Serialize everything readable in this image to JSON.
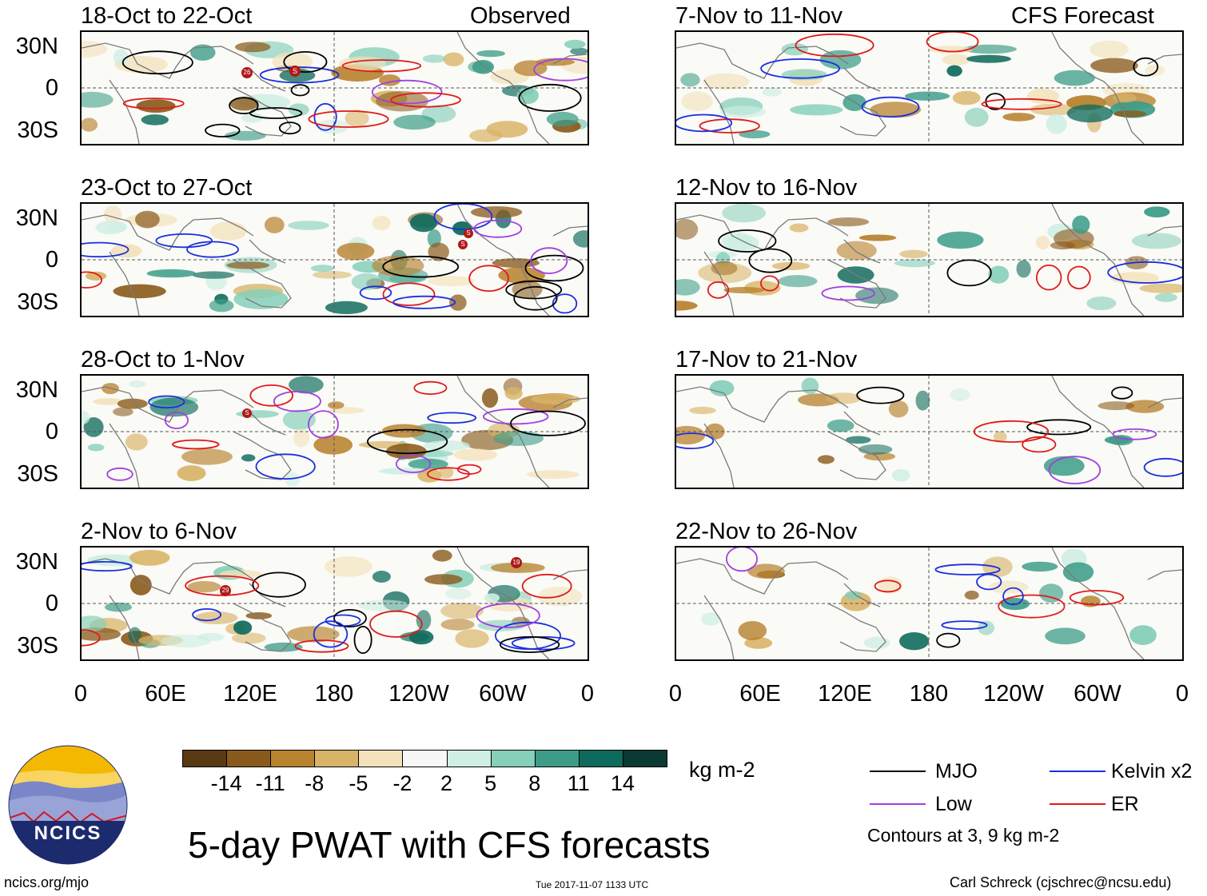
{
  "header": {
    "left_label": "Observed",
    "right_label": "CFS Forecast"
  },
  "panels": [
    {
      "title": "18-Oct to 22-Oct",
      "storms": [
        "26",
        "S"
      ]
    },
    {
      "title": "23-Oct to 27-Oct",
      "storms": [
        "S",
        "S"
      ]
    },
    {
      "title": "28-Oct to 1-Nov",
      "storms": [
        "S"
      ]
    },
    {
      "title": "2-Nov to 6-Nov",
      "storms": [
        "29",
        "19"
      ]
    },
    {
      "title": "7-Nov to 11-Nov",
      "storms": []
    },
    {
      "title": "12-Nov to 16-Nov",
      "storms": []
    },
    {
      "title": "17-Nov to 21-Nov",
      "storms": []
    },
    {
      "title": "22-Nov to 26-Nov",
      "storms": []
    }
  ],
  "y_axis": [
    "30N",
    "0",
    "30S"
  ],
  "x_axis": [
    "0",
    "60E",
    "120E",
    "180",
    "120W",
    "60W",
    "0"
  ],
  "colorbar": {
    "unit": "kg m-2",
    "levels": [
      "-14",
      "-11",
      "-8",
      "-5",
      "-2",
      "2",
      "5",
      "8",
      "11",
      "14"
    ],
    "colors": [
      "#5a3a12",
      "#8a5a1c",
      "#b8822f",
      "#d9b468",
      "#f3e2bb",
      "#f7f7f7",
      "#cfeee4",
      "#86cfba",
      "#3c9c88",
      "#0e6a5c",
      "#0a3a33"
    ]
  },
  "legend": {
    "items": [
      {
        "label": "MJO",
        "color": "#000000"
      },
      {
        "label": "Kelvin x2",
        "color": "#1a2fe0"
      },
      {
        "label": "Low",
        "color": "#a040e0"
      },
      {
        "label": "ER",
        "color": "#e01a1a"
      }
    ],
    "contours_note": "Contours at 3, 9 kg m-2"
  },
  "main_title": "5-day PWAT with CFS forecasts",
  "logo_text": "NCICS",
  "footer": {
    "url": "ncics.org/mjo",
    "timestamp": "Tue 2017-11-07 1133 UTC",
    "credit": "Carl Schreck (cjschrec@ncsu.edu)"
  }
}
